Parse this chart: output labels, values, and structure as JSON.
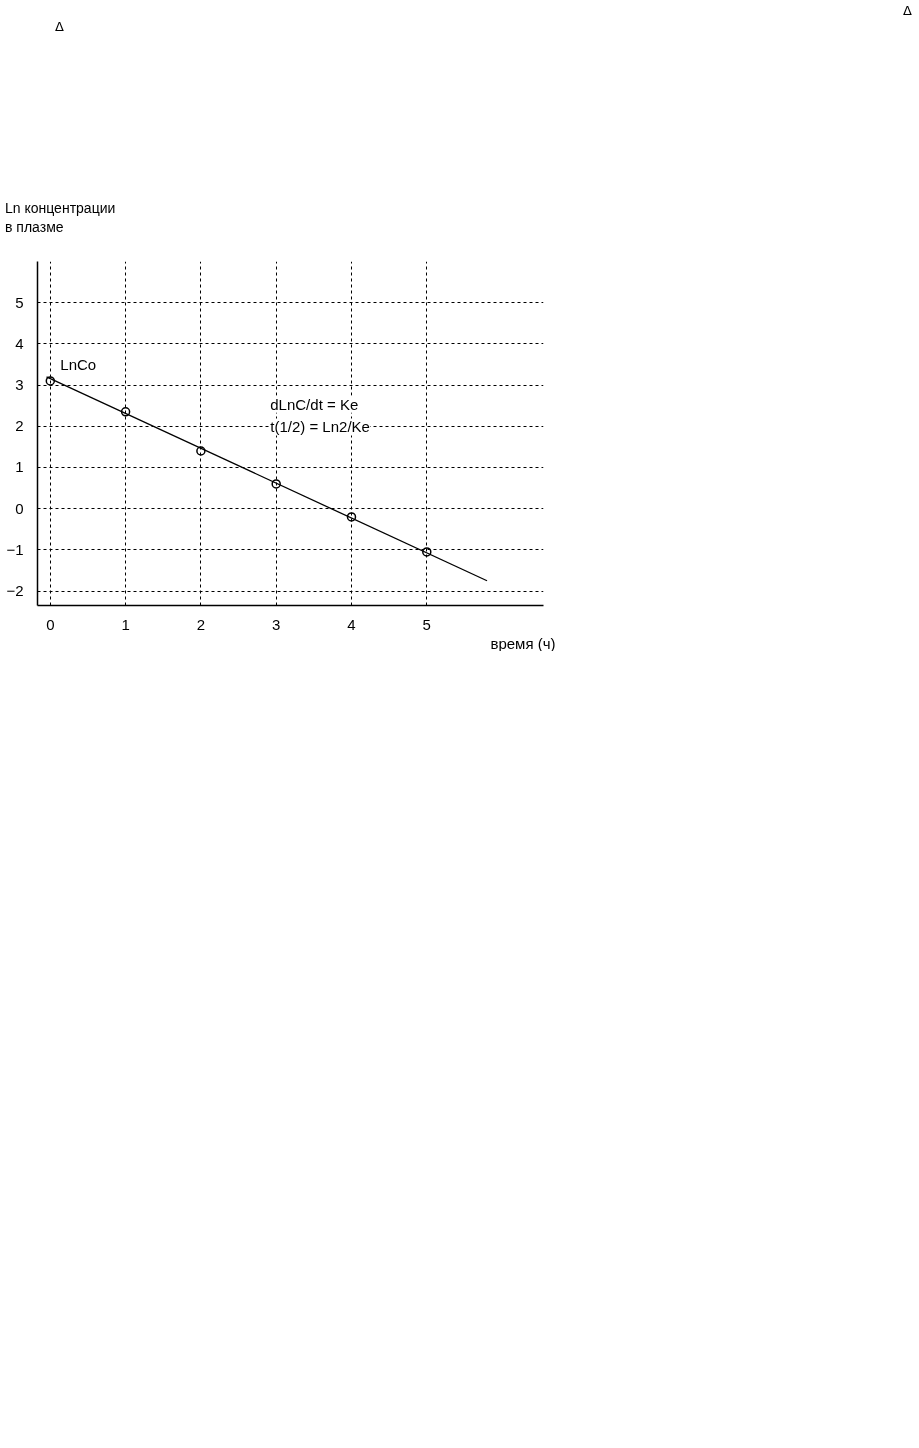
{
  "chart_data": {
    "type": "scatter",
    "ylabel": "Ln концентрации\nв плазме",
    "xlabel": "время (ч)",
    "x": [
      0,
      1,
      2,
      3,
      4,
      5
    ],
    "series": [
      {
        "values": [
          3.1,
          2.35,
          1.4,
          0.6,
          -0.2,
          -1.05
        ],
        "color": "#000000",
        "marker": "circle"
      },
      {
        "type": "line",
        "x": [
          -0.05,
          5.8
        ],
        "values": [
          3.2,
          -1.75
        ],
        "color": "#000000",
        "line_style": "solid"
      }
    ],
    "xlim": [
      -0.17,
      6.55
    ],
    "ylim": [
      -2.35,
      6
    ],
    "xticks": [
      0,
      1,
      2,
      3,
      4,
      5
    ],
    "yticks": [
      -2,
      -1,
      0,
      1,
      2,
      3,
      4,
      5
    ],
    "grid": true,
    "annotations": [
      {
        "text": "LnCo",
        "x": 0,
        "y": 3.1
      },
      "dLnC/dt = Ke",
      "t(1/2) = Ln2/Ke",
      "Δ",
      "Δ"
    ]
  }
}
